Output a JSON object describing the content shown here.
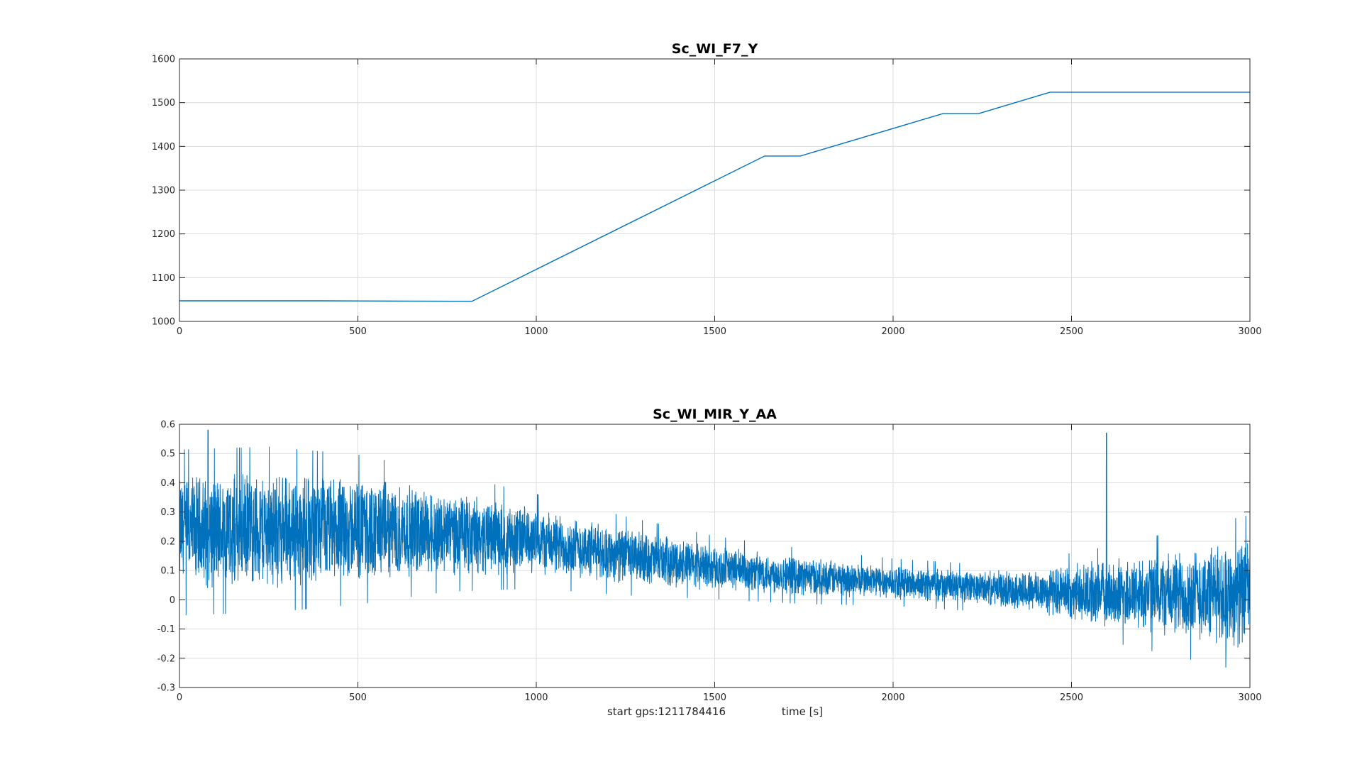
{
  "chart_data": [
    {
      "type": "line",
      "title": "Sc_WI_F7_Y",
      "xlabel": "",
      "ylabel": "",
      "xlim": [
        0,
        3000
      ],
      "ylim": [
        1000,
        1600
      ],
      "x_ticks": [
        0,
        500,
        1000,
        1500,
        2000,
        2500,
        3000
      ],
      "y_ticks": [
        1000,
        1100,
        1200,
        1300,
        1400,
        1500,
        1600
      ],
      "grid": true,
      "color": "#0072bd",
      "series": [
        {
          "x": [
            0,
            400,
            820,
            1640,
            1740,
            2140,
            2240,
            2440,
            3000
          ],
          "y": [
            1047,
            1047,
            1046,
            1378,
            1378,
            1475,
            1475,
            1524,
            1524
          ]
        }
      ]
    },
    {
      "type": "line",
      "title": "Sc_WI_MIR_Y_AA",
      "xlabel": "time [s]",
      "x_annotation": "start gps:1211784416",
      "ylabel": "",
      "xlim": [
        0,
        3000
      ],
      "ylim": [
        -0.3,
        0.6
      ],
      "x_ticks": [
        0,
        500,
        1000,
        1500,
        2000,
        2500,
        3000
      ],
      "y_ticks": [
        -0.3,
        -0.2,
        -0.1,
        0,
        0.1,
        0.2,
        0.3,
        0.4,
        0.5,
        0.6
      ],
      "grid": true,
      "color": "#0072bd",
      "series": [
        {
          "x": [
            0,
            250,
            500,
            750,
            1000,
            1250,
            1500,
            1750,
            2000,
            2250,
            2400,
            2600,
            2800,
            3000
          ],
          "center": [
            0.23,
            0.24,
            0.24,
            0.23,
            0.2,
            0.15,
            0.11,
            0.08,
            0.06,
            0.04,
            0.03,
            0.02,
            0.02,
            0.02
          ],
          "half_range": [
            0.21,
            0.21,
            0.19,
            0.15,
            0.12,
            0.1,
            0.08,
            0.07,
            0.06,
            0.06,
            0.08,
            0.12,
            0.16,
            0.2
          ],
          "peaks": [
            {
              "x": 2598,
              "y": 0.57
            },
            {
              "x": 80,
              "y": 0.58
            }
          ]
        }
      ]
    }
  ]
}
